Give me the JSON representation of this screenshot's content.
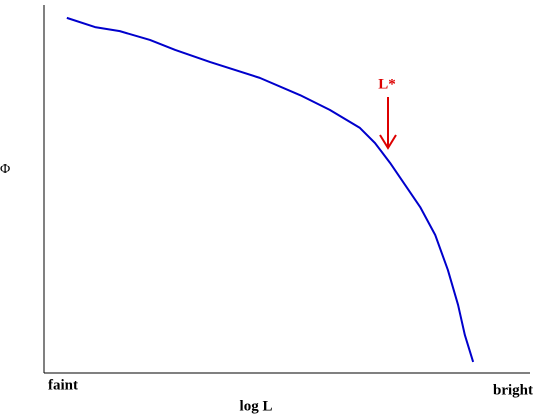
{
  "chart_data": {
    "type": "line",
    "xlabel": "log L",
    "ylabel": "Φ",
    "x_left_label": "faint",
    "x_right_label": "bright",
    "annotation": "L*",
    "xlim": [
      0,
      100
    ],
    "ylim": [
      0,
      100
    ],
    "x": [
      4.7,
      10.5,
      15.6,
      21.8,
      27.0,
      34.2,
      44.4,
      52.7,
      58.8,
      65.0,
      68.1,
      71.2,
      74.3,
      77.4,
      80.5,
      83.1,
      85.2,
      86.6,
      88.3
    ],
    "series": [
      {
        "color": "#0000cc",
        "values": [
          96.5,
          94.0,
          92.9,
          90.5,
          87.8,
          84.5,
          80.2,
          75.5,
          71.5,
          66.6,
          62.5,
          57.1,
          51.1,
          45.1,
          37.5,
          28.0,
          18.5,
          10.3,
          3.0
        ]
      }
    ],
    "annotation_color": "#dd0000"
  }
}
